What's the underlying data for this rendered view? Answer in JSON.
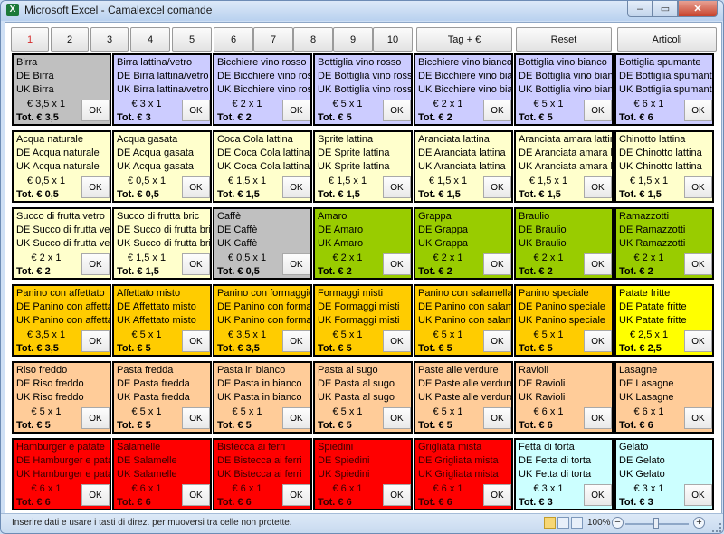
{
  "window": {
    "title": "Microsoft Excel - Camalexcel comande",
    "app_icon": "X"
  },
  "controls": {
    "minimize": "–",
    "maximize": "▭",
    "close": "✕"
  },
  "top_buttons": [
    "1",
    "2",
    "3",
    "4",
    "5",
    "6",
    "7",
    "8",
    "9",
    "10",
    "Tag + €",
    "Reset",
    "Articoli"
  ],
  "active_button_color": "#d42b2b",
  "colors": {
    "grey": "#c0c0c0",
    "lavender": "#ccccff",
    "lightyellow": "#ffffcc",
    "green": "#99cc00",
    "orange": "#ffcc00",
    "yellow": "#ffff00",
    "peach": "#ffcc99",
    "red": "#ff0000",
    "cyan": "#ccffff"
  },
  "ok_label": "OK",
  "grid": [
    [
      {
        "name": "Birra",
        "de": "DE Birra",
        "uk": "UK Birra",
        "price": "€ 3,5 x 1",
        "total": "Tot. € 3,5",
        "color": "grey"
      },
      {
        "name": "Birra lattina/vetro",
        "de": "DE Birra lattina/vetro",
        "uk": "UK Birra lattina/vetro",
        "price": "€ 3 x 1",
        "total": "Tot. € 3",
        "color": "lavender"
      },
      {
        "name": "Bicchiere vino rosso",
        "de": "DE Bicchiere vino rosso",
        "uk": "UK Bicchiere vino rosso",
        "price": "€ 2 x 1",
        "total": "Tot. € 2",
        "color": "lavender"
      },
      {
        "name": "Bottiglia vino rosso",
        "de": "DE Bottiglia vino rosso",
        "uk": "UK Bottiglia vino rosso",
        "price": "€ 5 x 1",
        "total": "Tot. € 5",
        "color": "lavender"
      },
      {
        "name": "Bicchiere vino bianco",
        "de": "DE Bicchiere vino bianco",
        "uk": "UK Bicchiere vino bianco",
        "price": "€ 2 x 1",
        "total": "Tot. € 2",
        "color": "lavender"
      },
      {
        "name": "Bottiglia vino bianco",
        "de": "DE Bottiglia vino bianco",
        "uk": "UK Bottiglia vino bianco",
        "price": "€ 5 x 1",
        "total": "Tot. € 5",
        "color": "lavender"
      },
      {
        "name": "Bottiglia spumante",
        "de": "DE Bottiglia spumante",
        "uk": "UK Bottiglia spumante",
        "price": "€ 6 x 1",
        "total": "Tot. € 6",
        "color": "lavender"
      }
    ],
    [
      {
        "name": "Acqua naturale",
        "de": "DE Acqua naturale",
        "uk": "UK Acqua naturale",
        "price": "€ 0,5 x 1",
        "total": "Tot. € 0,5",
        "color": "lightyellow"
      },
      {
        "name": "Acqua gasata",
        "de": "DE Acqua gasata",
        "uk": "UK Acqua gasata",
        "price": "€ 0,5 x 1",
        "total": "Tot. € 0,5",
        "color": "lightyellow"
      },
      {
        "name": "Coca Cola lattina",
        "de": "DE Coca Cola lattina",
        "uk": "UK Coca Cola lattina",
        "price": "€ 1,5 x 1",
        "total": "Tot. € 1,5",
        "color": "lightyellow"
      },
      {
        "name": "Sprite lattina",
        "de": "DE Sprite lattina",
        "uk": "UK Sprite lattina",
        "price": "€ 1,5 x 1",
        "total": "Tot. € 1,5",
        "color": "lightyellow"
      },
      {
        "name": "Aranciata lattina",
        "de": "DE Aranciata lattina",
        "uk": "UK Aranciata lattina",
        "price": "€ 1,5 x 1",
        "total": "Tot. € 1,5",
        "color": "lightyellow"
      },
      {
        "name": "Aranciata amara lattina",
        "de": "DE Aranciata amara lattina",
        "uk": "UK Aranciata amara lattina",
        "price": "€ 1,5 x 1",
        "total": "Tot. € 1,5",
        "color": "lightyellow"
      },
      {
        "name": "Chinotto lattina",
        "de": "DE Chinotto lattina",
        "uk": "UK Chinotto lattina",
        "price": "€ 1,5 x 1",
        "total": "Tot. € 1,5",
        "color": "lightyellow"
      }
    ],
    [
      {
        "name": "Succo di frutta vetro",
        "de": "DE Succo di frutta vetro",
        "uk": "UK Succo di frutta vetro",
        "price": "€ 2 x 1",
        "total": "Tot. € 2",
        "color": "lightyellow"
      },
      {
        "name": "Succo di frutta bric",
        "de": "DE Succo di frutta bric",
        "uk": "UK Succo di frutta bric",
        "price": "€ 1,5 x 1",
        "total": "Tot. € 1,5",
        "color": "lightyellow"
      },
      {
        "name": "Caffè",
        "de": "DE Caffè",
        "uk": "UK Caffè",
        "price": "€ 0,5 x 1",
        "total": "Tot. € 0,5",
        "color": "grey"
      },
      {
        "name": "Amaro",
        "de": "DE Amaro",
        "uk": "UK Amaro",
        "price": "€ 2 x 1",
        "total": "Tot. € 2",
        "color": "green"
      },
      {
        "name": "Grappa",
        "de": "DE Grappa",
        "uk": "UK Grappa",
        "price": "€ 2 x 1",
        "total": "Tot. € 2",
        "color": "green"
      },
      {
        "name": "Braulio",
        "de": "DE Braulio",
        "uk": "UK Braulio",
        "price": "€ 2 x 1",
        "total": "Tot. € 2",
        "color": "green"
      },
      {
        "name": "Ramazzotti",
        "de": "DE Ramazzotti",
        "uk": "UK Ramazzotti",
        "price": "€ 2 x 1",
        "total": "Tot. € 2",
        "color": "green"
      }
    ],
    [
      {
        "name": "Panino con affettato",
        "de": "DE Panino con affettato",
        "uk": "UK Panino con affettato",
        "price": "€ 3,5 x 1",
        "total": "Tot. € 3,5",
        "color": "orange"
      },
      {
        "name": "Affettato misto",
        "de": "DE Affettato misto",
        "uk": "UK Affettato misto",
        "price": "€ 5 x 1",
        "total": "Tot. € 5",
        "color": "orange"
      },
      {
        "name": "Panino con formaggio",
        "de": "DE Panino con formaggio",
        "uk": "UK Panino con formaggio",
        "price": "€ 3,5 x 1",
        "total": "Tot. € 3,5",
        "color": "orange"
      },
      {
        "name": "Formaggi misti",
        "de": "DE Formaggi misti",
        "uk": "UK Formaggi misti",
        "price": "€ 5 x 1",
        "total": "Tot. € 5",
        "color": "orange"
      },
      {
        "name": "Panino con salamella",
        "de": "DE Panino con salamella",
        "uk": "UK Panino con salamella",
        "price": "€ 5 x 1",
        "total": "Tot. € 5",
        "color": "orange"
      },
      {
        "name": "Panino speciale",
        "de": "DE Panino speciale",
        "uk": "UK Panino speciale",
        "price": "€ 5 x 1",
        "total": "Tot. € 5",
        "color": "orange"
      },
      {
        "name": "Patate fritte",
        "de": "DE Patate fritte",
        "uk": "UK Patate fritte",
        "price": "€ 2,5 x 1",
        "total": "Tot. € 2,5",
        "color": "yellow"
      }
    ],
    [
      {
        "name": "Riso freddo",
        "de": "DE Riso freddo",
        "uk": "UK Riso freddo",
        "price": "€ 5 x 1",
        "total": "Tot. € 5",
        "color": "peach"
      },
      {
        "name": "Pasta fredda",
        "de": "DE Pasta fredda",
        "uk": "UK Pasta fredda",
        "price": "€ 5 x 1",
        "total": "Tot. € 5",
        "color": "peach"
      },
      {
        "name": "Pasta in bianco",
        "de": "DE Pasta in bianco",
        "uk": "UK Pasta in bianco",
        "price": "€ 5 x 1",
        "total": "Tot. € 5",
        "color": "peach"
      },
      {
        "name": "Pasta al sugo",
        "de": "DE Pasta al sugo",
        "uk": "UK Pasta al sugo",
        "price": "€ 5 x 1",
        "total": "Tot. € 5",
        "color": "peach"
      },
      {
        "name": "Paste alle verdure",
        "de": "DE Paste alle verdure",
        "uk": "UK Paste alle verdure",
        "price": "€ 5 x 1",
        "total": "Tot. € 5",
        "color": "peach"
      },
      {
        "name": "Ravioli",
        "de": "DE Ravioli",
        "uk": "UK Ravioli",
        "price": "€ 6 x 1",
        "total": "Tot. € 6",
        "color": "peach"
      },
      {
        "name": "Lasagne",
        "de": "DE Lasagne",
        "uk": "UK Lasagne",
        "price": "€ 6 x 1",
        "total": "Tot. € 6",
        "color": "peach"
      }
    ],
    [
      {
        "name": "Hamburger e patate",
        "de": "DE Hamburger e patate",
        "uk": "UK Hamburger e patate",
        "price": "€ 6 x 1",
        "total": "Tot. € 6",
        "color": "red"
      },
      {
        "name": "Salamelle",
        "de": "DE Salamelle",
        "uk": "UK Salamelle",
        "price": "€ 6 x 1",
        "total": "Tot. € 6",
        "color": "red"
      },
      {
        "name": "Bistecca ai ferri",
        "de": "DE Bistecca ai ferri",
        "uk": "UK Bistecca ai ferri",
        "price": "€ 6 x 1",
        "total": "Tot. € 6",
        "color": "red"
      },
      {
        "name": "Spiedini",
        "de": "DE Spiedini",
        "uk": "UK Spiedini",
        "price": "€ 6 x 1",
        "total": "Tot. € 6",
        "color": "red"
      },
      {
        "name": "Grigliata mista",
        "de": "DE Grigliata mista",
        "uk": "UK Grigliata mista",
        "price": "€ 6 x 1",
        "total": "Tot. € 6",
        "color": "red"
      },
      {
        "name": "Fetta di torta",
        "de": "DE Fetta di torta",
        "uk": "UK Fetta di torta",
        "price": "€ 3 x 1",
        "total": "Tot. € 3",
        "color": "cyan"
      },
      {
        "name": "Gelato",
        "de": "DE Gelato",
        "uk": "UK Gelato",
        "price": "€ 3 x 1",
        "total": "Tot. € 3",
        "color": "cyan"
      }
    ]
  ],
  "status": {
    "message": "Inserire dati e usare i tasti di direz. per muoversi tra celle non protette.",
    "zoom": "100%",
    "zoom_minus": "−",
    "zoom_plus": "+"
  }
}
